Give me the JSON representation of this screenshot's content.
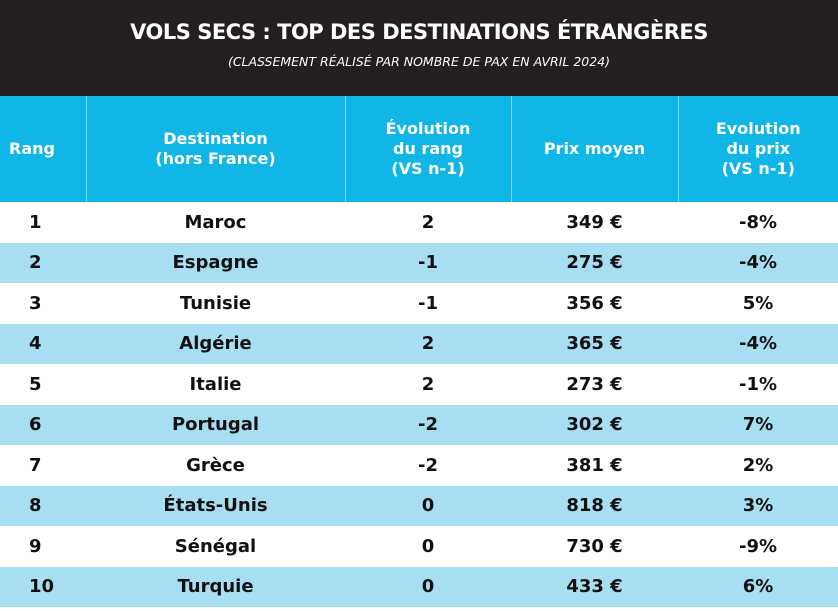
{
  "header": {
    "title": "VOLS SECS : TOP DES DESTINATIONS ÉTRANGÈRES",
    "subtitle": "(CLASSEMENT RÉALISÉ PAR NOMBRE DE PAX EN AVRIL 2024)"
  },
  "colors": {
    "header_bg": "#231f20",
    "column_header_bg": "#10b6e6",
    "stripe_bg": "#a8def2"
  },
  "table": {
    "columns": [
      [
        "Rang"
      ],
      [
        "Destination",
        "(hors France)"
      ],
      [
        "Évolution",
        "du rang",
        "(VS n-1)"
      ],
      [
        "Prix moyen"
      ],
      [
        "Evolution",
        "du prix",
        "(VS n-1)"
      ]
    ],
    "rows": [
      [
        "1",
        "Maroc",
        "2",
        "349 €",
        "-8%"
      ],
      [
        "2",
        "Espagne",
        "-1",
        "275 €",
        "-4%"
      ],
      [
        "3",
        "Tunisie",
        "-1",
        "356 €",
        "5%"
      ],
      [
        "4",
        "Algérie",
        "2",
        "365 €",
        "-4%"
      ],
      [
        "5",
        "Italie",
        "2",
        "273 €",
        "-1%"
      ],
      [
        "6",
        "Portugal",
        "-2",
        "302 €",
        "7%"
      ],
      [
        "7",
        "Grèce",
        "-2",
        "381 €",
        "2%"
      ],
      [
        "8",
        "États-Unis",
        "0",
        "818 €",
        "3%"
      ],
      [
        "9",
        "Sénégal",
        "0",
        "730 €",
        "-9%"
      ],
      [
        "10",
        "Turquie",
        "0",
        "433 €",
        "6%"
      ]
    ]
  }
}
